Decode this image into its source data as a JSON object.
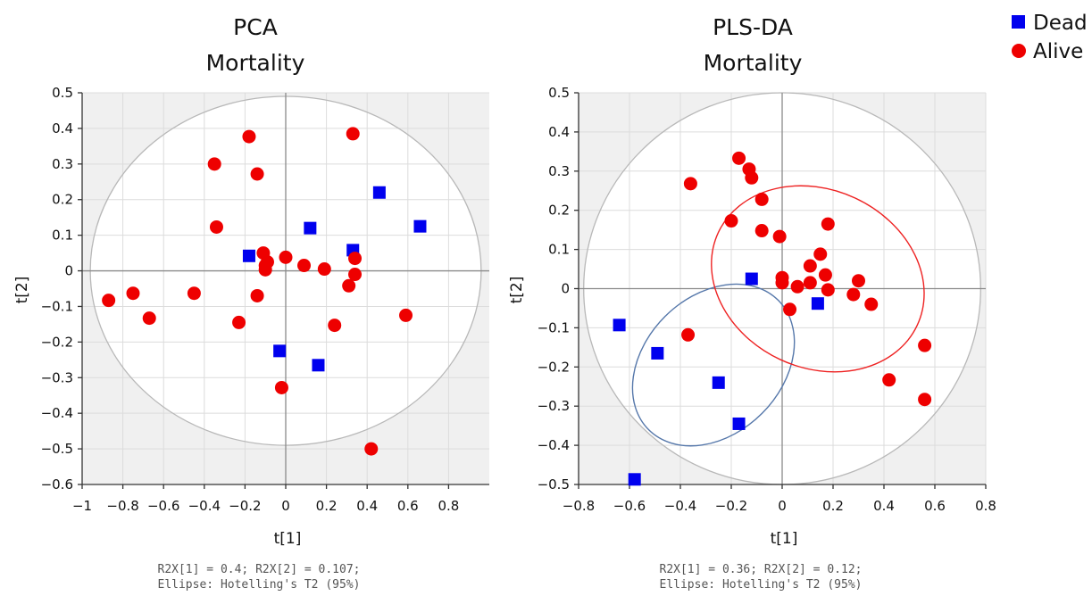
{
  "legend": [
    {
      "name": "Dead",
      "marker": "square",
      "color": "#0000ee"
    },
    {
      "name": "Alive",
      "marker": "circle",
      "color": "#ee0000"
    }
  ],
  "colors": {
    "plot_background": "#f0f0f0",
    "ellipse_fill": "#ffffff",
    "ellipse_stroke": "#b8b8b8",
    "zero_line": "#8a8a8a",
    "grid": "#dcdcdc",
    "dead_ellipse": "#5577aa",
    "alive_ellipse": "#ee2222"
  },
  "chart_data": [
    {
      "type": "scatter",
      "title": "PCA",
      "subtitle": "Mortality",
      "xlabel": "t[1]",
      "ylabel": "t[2]",
      "xlim": [
        -1,
        1
      ],
      "ylim": [
        -0.6,
        0.5
      ],
      "xticks": [
        -1,
        -0.8,
        -0.6,
        -0.4,
        -0.2,
        0,
        0.2,
        0.4,
        0.6,
        0.8
      ],
      "xtick_labels": [
        "−1",
        "−0.8",
        "−0.6",
        "−0.4",
        "−0.2",
        "0",
        "0.2",
        "0.4",
        "0.6",
        "0.8"
      ],
      "yticks": [
        -0.6,
        -0.5,
        -0.4,
        -0.3,
        -0.2,
        -0.1,
        0,
        0.1,
        0.2,
        0.3,
        0.4,
        0.5
      ],
      "ytick_labels": [
        "−0.6",
        "−0.5",
        "−0.4",
        "−0.3",
        "−0.2",
        "−0.1",
        "0",
        "0.1",
        "0.2",
        "0.3",
        "0.4",
        "0.5"
      ],
      "grid": true,
      "hotelling_ellipse": {
        "cx": 0,
        "cy": 0,
        "rx": 0.96,
        "ry": 0.49
      },
      "group_ellipses": [],
      "series": [
        {
          "name": "Dead",
          "points": [
            [
              0.46,
              0.22
            ],
            [
              0.66,
              0.125
            ],
            [
              0.12,
              0.12
            ],
            [
              0.33,
              0.058
            ],
            [
              -0.18,
              0.042
            ],
            [
              -0.03,
              -0.225
            ],
            [
              0.16,
              -0.265
            ]
          ]
        },
        {
          "name": "Alive",
          "points": [
            [
              -0.87,
              -0.083
            ],
            [
              -0.75,
              -0.063
            ],
            [
              -0.67,
              -0.133
            ],
            [
              -0.45,
              -0.063
            ],
            [
              -0.35,
              0.3
            ],
            [
              -0.34,
              0.123
            ],
            [
              -0.23,
              -0.145
            ],
            [
              -0.18,
              0.377
            ],
            [
              -0.14,
              0.272
            ],
            [
              -0.14,
              -0.07
            ],
            [
              -0.11,
              0.05
            ],
            [
              -0.1,
              0.015
            ],
            [
              -0.1,
              0.003
            ],
            [
              -0.09,
              0.025
            ],
            [
              0,
              0.038
            ],
            [
              0.09,
              0.015
            ],
            [
              0.19,
              0.005
            ],
            [
              0.24,
              -0.153
            ],
            [
              0.31,
              -0.042
            ],
            [
              0.33,
              0.385
            ],
            [
              0.34,
              0.035
            ],
            [
              0.34,
              -0.01
            ],
            [
              0.59,
              -0.125
            ],
            [
              -0.02,
              -0.328
            ],
            [
              0.42,
              -0.5
            ]
          ]
        }
      ],
      "footnote": [
        "R2X[1] = 0.4; R2X[2] = 0.107;",
        "Ellipse: Hotelling's T2 (95%)"
      ]
    },
    {
      "type": "scatter",
      "title": "PLS-DA",
      "subtitle": "Mortality",
      "xlabel": "t[1]",
      "ylabel": "t[2]",
      "xlim": [
        -0.8,
        0.8
      ],
      "ylim": [
        -0.5,
        0.5
      ],
      "xticks": [
        -0.8,
        -0.6,
        -0.4,
        -0.2,
        0,
        0.2,
        0.4,
        0.6,
        0.8
      ],
      "xtick_labels": [
        "−0.8",
        "−0.6",
        "−0.4",
        "−0.2",
        "0",
        "0.2",
        "0.4",
        "0.6",
        "0.8"
      ],
      "yticks": [
        -0.5,
        -0.4,
        -0.3,
        -0.2,
        -0.1,
        0,
        0.1,
        0.2,
        0.3,
        0.4,
        0.5
      ],
      "ytick_labels": [
        "−0.5",
        "−0.4",
        "−0.3",
        "−0.2",
        "−0.1",
        "0",
        "0.1",
        "0.2",
        "0.3",
        "0.4",
        "0.5"
      ],
      "grid": true,
      "hotelling_ellipse": {
        "cx": 0,
        "cy": 0,
        "rx": 0.78,
        "ry": 0.5
      },
      "group_ellipses": [
        {
          "name": "Dead",
          "cx": -0.27,
          "cy": -0.195,
          "rx": 0.36,
          "ry": 0.175,
          "angle": -45
        },
        {
          "name": "Alive",
          "cx": 0.14,
          "cy": 0.025,
          "rx": 0.35,
          "ry": 0.28,
          "angle": -65
        }
      ],
      "series": [
        {
          "name": "Dead",
          "points": [
            [
              -0.64,
              -0.093
            ],
            [
              -0.49,
              -0.165
            ],
            [
              -0.58,
              -0.487
            ],
            [
              -0.25,
              -0.24
            ],
            [
              -0.17,
              -0.345
            ],
            [
              -0.12,
              0.025
            ],
            [
              0.14,
              -0.038
            ]
          ]
        },
        {
          "name": "Alive",
          "points": [
            [
              -0.37,
              -0.118
            ],
            [
              -0.36,
              0.268
            ],
            [
              -0.2,
              0.173
            ],
            [
              -0.17,
              0.333
            ],
            [
              -0.13,
              0.305
            ],
            [
              -0.12,
              0.283
            ],
            [
              -0.08,
              0.228
            ],
            [
              -0.08,
              0.148
            ],
            [
              -0.01,
              0.133
            ],
            [
              0,
              0.028
            ],
            [
              0,
              0.015
            ],
            [
              0.03,
              -0.053
            ],
            [
              0.06,
              0.005
            ],
            [
              0.11,
              0.058
            ],
            [
              0.11,
              0.015
            ],
            [
              0.15,
              0.088
            ],
            [
              0.17,
              0.035
            ],
            [
              0.18,
              -0.003
            ],
            [
              0.18,
              0.165
            ],
            [
              0.28,
              -0.015
            ],
            [
              0.3,
              0.02
            ],
            [
              0.35,
              -0.04
            ],
            [
              0.42,
              -0.233
            ],
            [
              0.56,
              -0.145
            ],
            [
              0.56,
              -0.283
            ]
          ]
        }
      ],
      "footnote": [
        "R2X[1] = 0.36; R2X[2] = 0.12;",
        "Ellipse: Hotelling's T2 (95%)"
      ]
    }
  ]
}
